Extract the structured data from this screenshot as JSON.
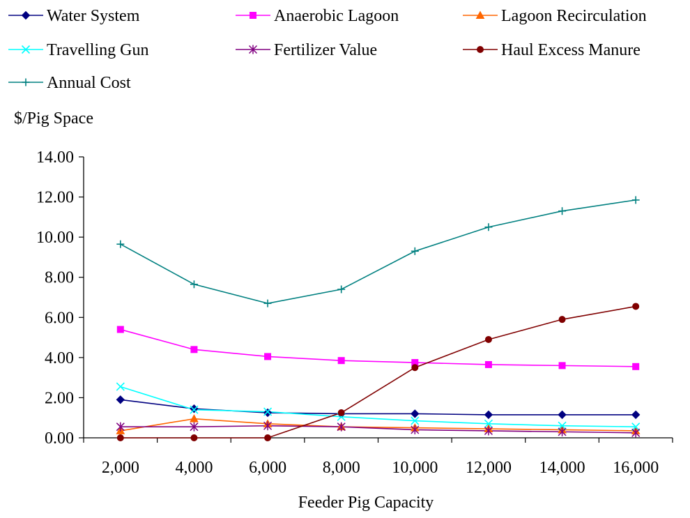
{
  "chart_data": {
    "type": "line",
    "title": "",
    "ylabel": "$/Pig Space",
    "xlabel": "Feeder Pig Capacity",
    "categories": [
      "2,000",
      "4,000",
      "6,000",
      "8,000",
      "10,000",
      "12,000",
      "14,000",
      "16,000"
    ],
    "ylim": [
      0,
      14
    ],
    "yticks": [
      "0.00",
      "2.00",
      "4.00",
      "6.00",
      "8.00",
      "10.00",
      "12.00",
      "14.00"
    ],
    "grid": false,
    "legend_position": "top",
    "series": [
      {
        "name": "Water System",
        "color": "#000080",
        "marker": "diamond",
        "values": [
          1.9,
          1.45,
          1.25,
          1.2,
          1.2,
          1.15,
          1.15,
          1.15
        ]
      },
      {
        "name": "Anaerobic Lagoon",
        "color": "#FF00FF",
        "marker": "square",
        "values": [
          5.4,
          4.4,
          4.05,
          3.85,
          3.75,
          3.65,
          3.6,
          3.55
        ]
      },
      {
        "name": "Lagoon Recirculation",
        "color": "#FF6600",
        "marker": "triangle",
        "values": [
          0.35,
          0.95,
          0.7,
          0.55,
          0.5,
          0.45,
          0.4,
          0.35
        ]
      },
      {
        "name": "Travelling Gun",
        "color": "#00FFFF",
        "marker": "x",
        "values": [
          2.55,
          1.4,
          1.3,
          1.05,
          0.85,
          0.7,
          0.6,
          0.55
        ]
      },
      {
        "name": "Fertilizer Value",
        "color": "#800080",
        "marker": "star",
        "values": [
          0.55,
          0.55,
          0.6,
          0.55,
          0.4,
          0.35,
          0.3,
          0.25
        ]
      },
      {
        "name": "Haul Excess Manure",
        "color": "#800000",
        "marker": "circle",
        "values": [
          0.0,
          0.0,
          0.0,
          1.25,
          3.5,
          4.9,
          5.9,
          6.55
        ]
      },
      {
        "name": "Annual Cost",
        "color": "#008080",
        "marker": "plus",
        "values": [
          9.65,
          7.65,
          6.7,
          7.4,
          9.3,
          10.5,
          11.3,
          11.85
        ]
      }
    ]
  }
}
